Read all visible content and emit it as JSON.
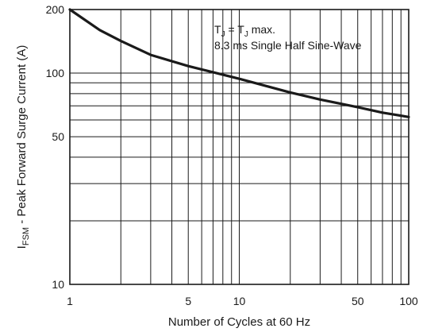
{
  "chart_data": {
    "type": "line",
    "title": "",
    "xlabel": "Number of Cycles at 60 Hz",
    "ylabel": {
      "prefix": "I",
      "sub": "FSM",
      "rest": " - Peak Forward Surge Current (A)"
    },
    "xscale": "log",
    "yscale": "log",
    "xlim": [
      1,
      100
    ],
    "ylim": [
      10,
      200
    ],
    "xticks": [
      {
        "value": 1,
        "label": "1"
      },
      {
        "value": 5,
        "label": "5"
      },
      {
        "value": 10,
        "label": "10"
      },
      {
        "value": 50,
        "label": "50"
      },
      {
        "value": 100,
        "label": "100"
      }
    ],
    "yticks": [
      {
        "value": 10,
        "label": "10"
      },
      {
        "value": 50,
        "label": "50"
      },
      {
        "value": 100,
        "label": "100"
      },
      {
        "value": 200,
        "label": "200"
      }
    ],
    "grid": true,
    "x_grid_values": [
      2,
      3,
      4,
      5,
      6,
      7,
      8,
      9,
      10,
      20,
      30,
      40,
      50,
      60,
      70,
      80,
      90
    ],
    "y_grid_values": [
      20,
      30,
      40,
      50,
      60,
      70,
      80,
      90,
      100
    ],
    "series": [
      {
        "color": "#1a1a1a",
        "x": [
          1,
          1.5,
          2,
          3,
          5,
          7,
          10,
          20,
          30,
          50,
          70,
          100
        ],
        "y": [
          200,
          160,
          142,
          122,
          108,
          101,
          94,
          81,
          75,
          69,
          65,
          62
        ]
      }
    ],
    "annotation": {
      "line1": {
        "t1": "T",
        "s1": "J",
        "mid": " = T",
        "s2": "J",
        "end": " max."
      },
      "line2": "8.3 ms Single Half Sine-Wave"
    }
  }
}
